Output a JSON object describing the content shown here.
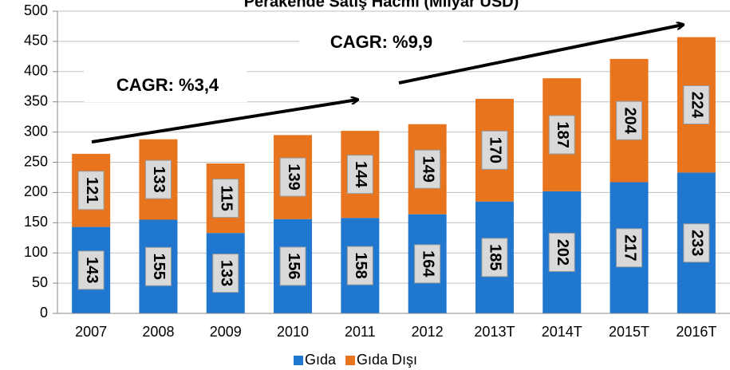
{
  "chart_data": {
    "type": "stacked_bar",
    "title": "Perakende Satış Hacmi (Milyar USD)",
    "categories": [
      "2007",
      "2008",
      "2009",
      "2010",
      "2011",
      "2012",
      "2013T",
      "2014T",
      "2015T",
      "2016T"
    ],
    "series": [
      {
        "name": "Gıda",
        "color": "#1f77d0",
        "values": [
          143,
          155,
          133,
          156,
          158,
          164,
          185,
          202,
          217,
          233
        ]
      },
      {
        "name": "Gıda Dışı",
        "color": "#e8741e",
        "values": [
          121,
          133,
          115,
          139,
          144,
          149,
          170,
          187,
          204,
          224
        ]
      }
    ],
    "annotations": [
      "CAGR: %3,4",
      "CAGR: %9,9"
    ],
    "ylim": [
      0,
      500
    ],
    "yticks": [
      0,
      50,
      100,
      150,
      200,
      250,
      300,
      350,
      400,
      450,
      500
    ],
    "grid": true,
    "legend": "bottom"
  }
}
